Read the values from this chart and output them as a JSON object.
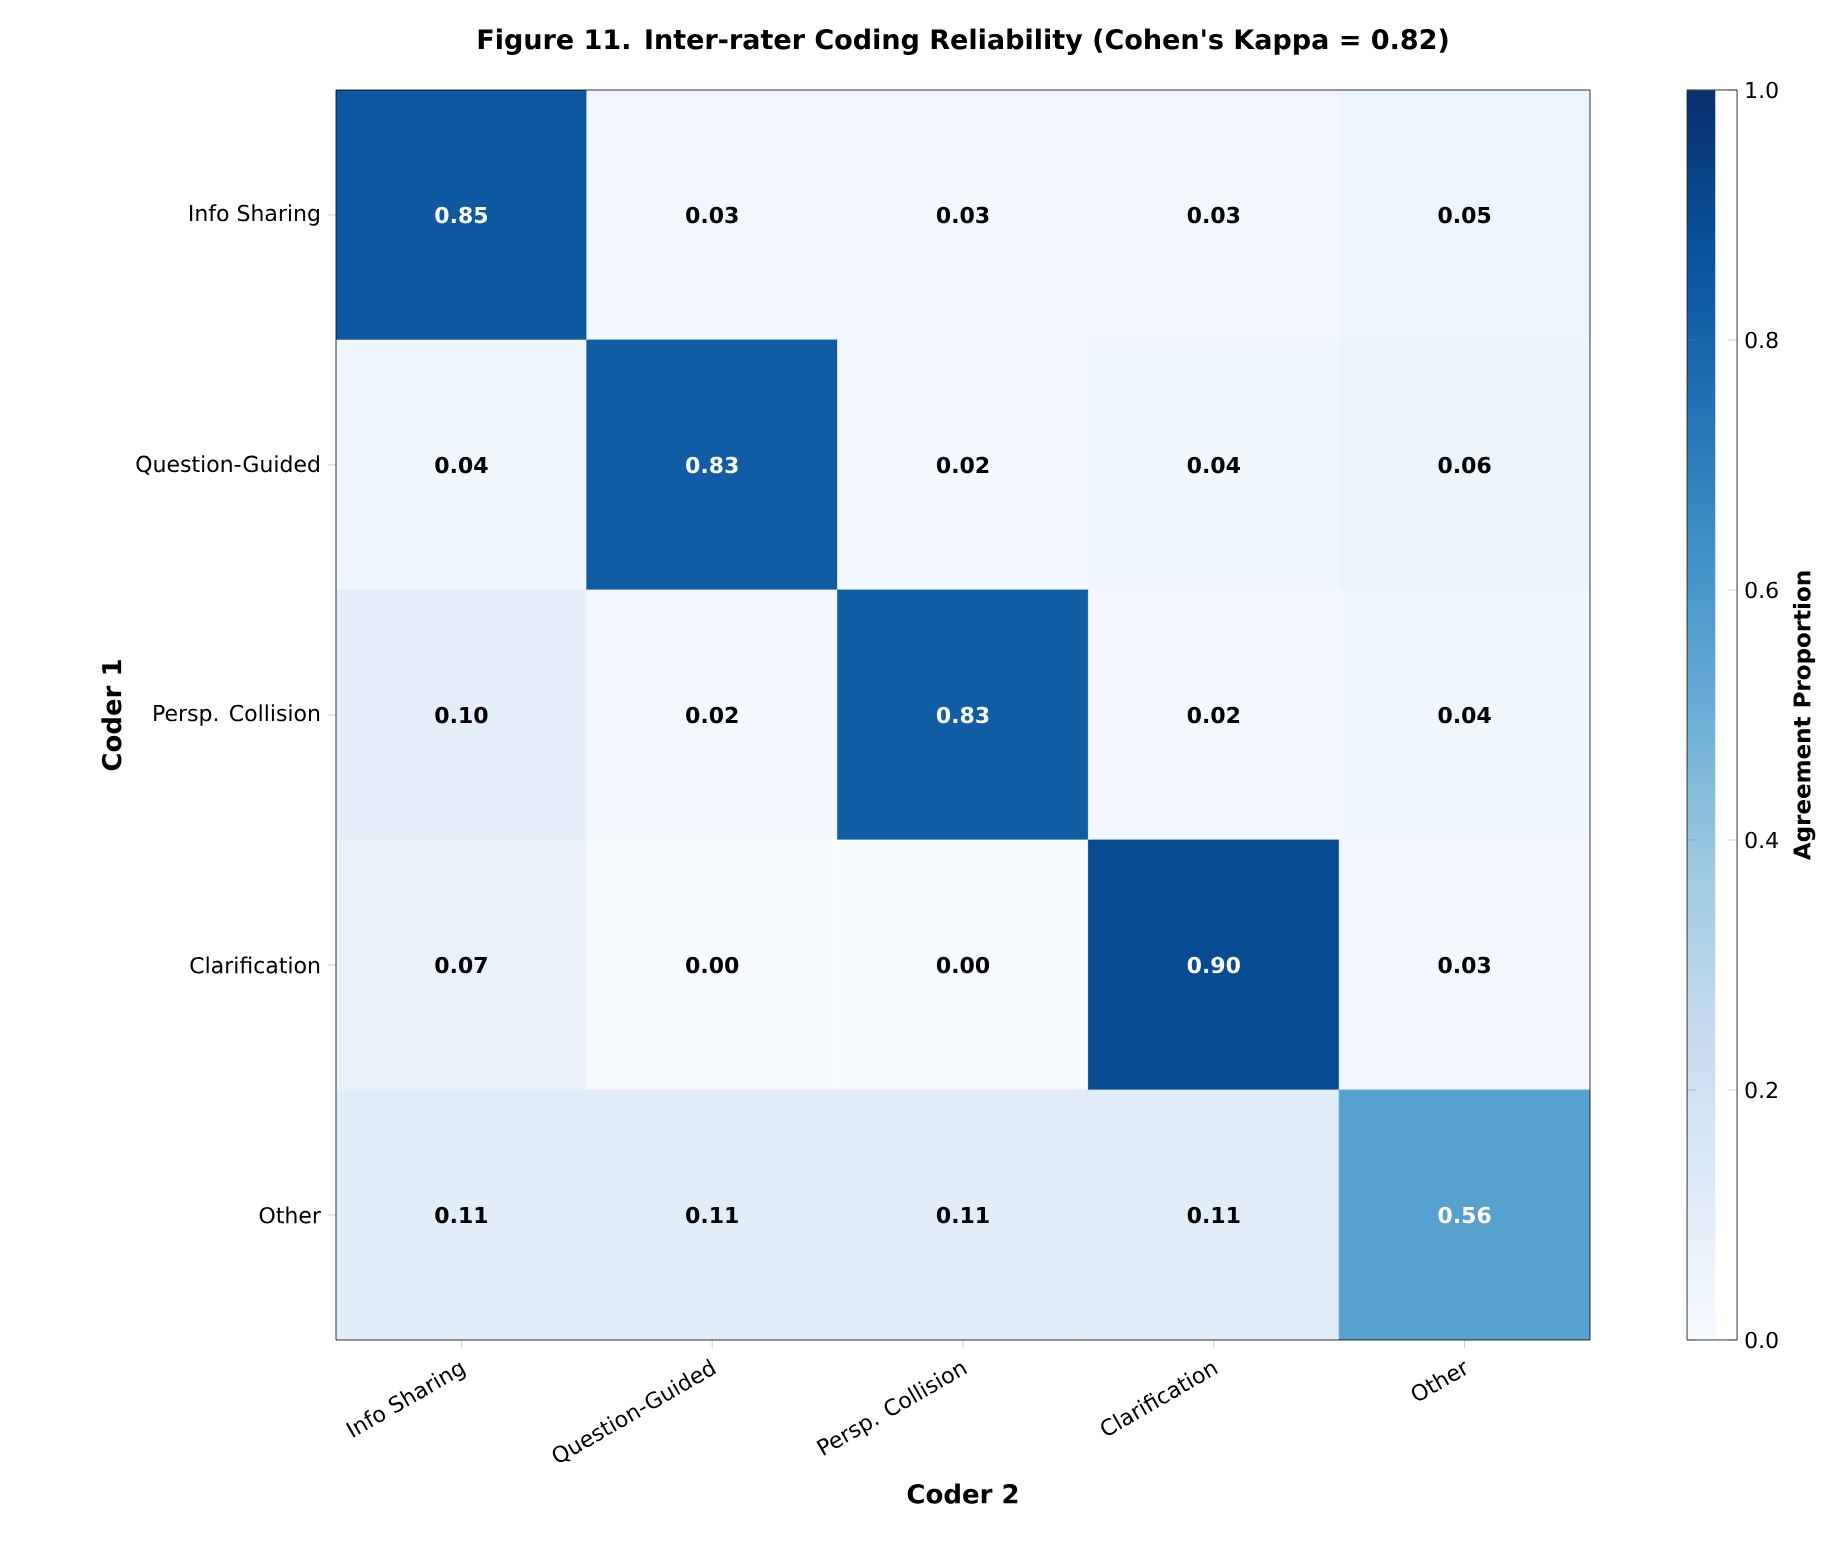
{
  "chart_data": {
    "type": "heatmap",
    "title": "Figure 11. Inter-rater Coding Reliability (Cohen's Kappa = 0.82)",
    "xlabel": "Coder 2",
    "ylabel": "Coder 1",
    "clabel": "Agreement Proportion",
    "categories": [
      "Info Sharing",
      "Question-Guided",
      "Persp. Collision",
      "Clarification",
      "Other"
    ],
    "y_categories": [
      "Info Sharing",
      "Question-Guided",
      "Persp. Collision",
      "Clarification",
      "Other"
    ],
    "cells": [
      [
        0.85,
        0.03,
        0.03,
        0.03,
        0.05
      ],
      [
        0.04,
        0.83,
        0.02,
        0.04,
        0.06
      ],
      [
        0.1,
        0.02,
        0.83,
        0.02,
        0.04
      ],
      [
        0.07,
        0.0,
        0.0,
        0.9,
        0.03
      ],
      [
        0.11,
        0.11,
        0.11,
        0.11,
        0.56
      ]
    ],
    "cell_labels": [
      [
        "0.85",
        "0.03",
        "0.03",
        "0.03",
        "0.05"
      ],
      [
        "0.04",
        "0.83",
        "0.02",
        "0.04",
        "0.06"
      ],
      [
        "0.10",
        "0.02",
        "0.83",
        "0.02",
        "0.04"
      ],
      [
        "0.07",
        "0.00",
        "0.00",
        "0.90",
        "0.03"
      ],
      [
        "0.11",
        "0.11",
        "0.11",
        "0.11",
        "0.56"
      ]
    ],
    "clim": [
      0,
      1
    ],
    "cticks": [
      {
        "value": 0,
        "label": "0.0"
      },
      0.2,
      0.4,
      0.6,
      0.8,
      {
        "value": 1,
        "label": "1.0"
      }
    ]
  }
}
